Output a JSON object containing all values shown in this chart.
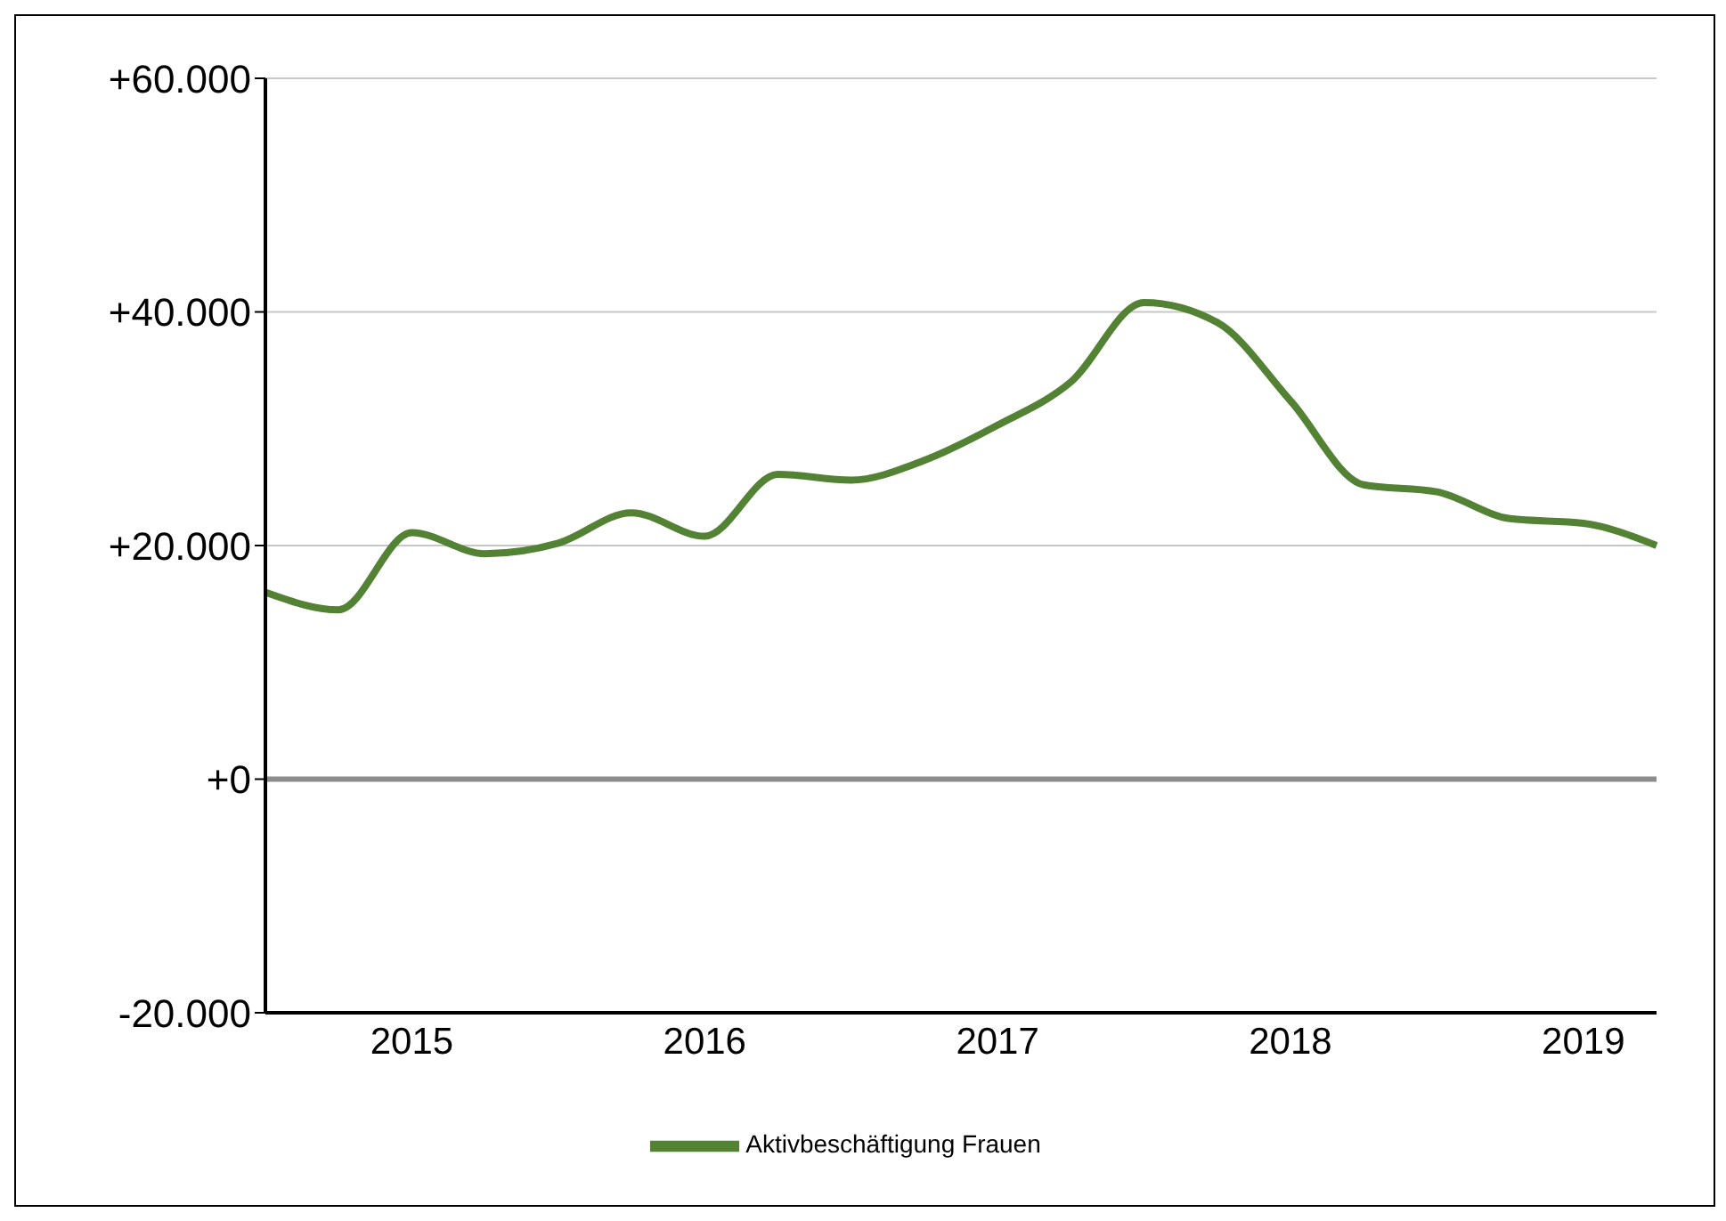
{
  "chart_data": {
    "type": "line",
    "categories": [
      null,
      null,
      "2015",
      null,
      null,
      null,
      "2016",
      null,
      null,
      null,
      "2017",
      null,
      null,
      null,
      "2018",
      null,
      null,
      null,
      "2019",
      null
    ],
    "series": [
      {
        "name": "Aktivbeschäftigung Frauen",
        "color": "#548235",
        "values": [
          16000,
          14500,
          21100,
          19300,
          20200,
          22800,
          20800,
          26100,
          25600,
          27300,
          30300,
          34000,
          40800,
          39100,
          32400,
          25200,
          24600,
          22300,
          21900,
          20000
        ]
      }
    ],
    "ylim": [
      -20000,
      60000
    ],
    "yticks": [
      {
        "value": -20000,
        "label": "-20.000"
      },
      {
        "value": 0,
        "label": "+0"
      },
      {
        "value": 20000,
        "label": "+20.000"
      },
      {
        "value": 40000,
        "label": "+40.000"
      },
      {
        "value": 60000,
        "label": "+60.000"
      }
    ],
    "ref_lines": [
      {
        "axis": "y",
        "value": 0,
        "color": "#8c8c8c"
      }
    ],
    "grid": "y",
    "legend": "bottom",
    "marker": "none",
    "line_style": "solid"
  }
}
